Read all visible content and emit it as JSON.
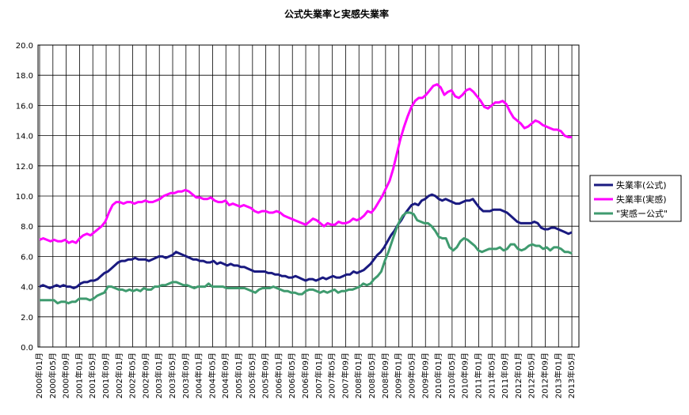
{
  "chart_data": {
    "type": "line",
    "title": "公式失業率と実感失業率",
    "xlabel": "",
    "ylabel": "",
    "ylim": [
      0,
      20
    ],
    "yticks": [
      "0.0",
      "2.0",
      "4.0",
      "6.0",
      "8.0",
      "10.0",
      "12.0",
      "14.0",
      "16.0",
      "18.0",
      "20.0"
    ],
    "x_tick_labels": [
      "2000年01月",
      "2000年05月",
      "2000年09月",
      "2001年01月",
      "2001年05月",
      "2001年09月",
      "2002年01月",
      "2002年05月",
      "2002年09月",
      "2003年01月",
      "2003年05月",
      "2003年09月",
      "2004年01月",
      "2004年05月",
      "2004年09月",
      "2005年01月",
      "2005年05月",
      "2005年09月",
      "2006年01月",
      "2006年05月",
      "2006年09月",
      "2007年01月",
      "2007年05月",
      "2007年09月",
      "2008年01月",
      "2008年05月",
      "2008年09月",
      "2009年01月",
      "2009年05月",
      "2009年09月",
      "2010年01月",
      "2010年05月",
      "2010年09月",
      "2011年01月",
      "2011年05月",
      "2011年09月",
      "2012年01月",
      "2012年05月",
      "2012年09月",
      "2013年01月",
      "2013年05月"
    ],
    "grid": true,
    "legend_position": "right",
    "series": [
      {
        "name": "失業率(公式)",
        "color": "#1a1a80",
        "values": [
          4.0,
          4.1,
          4.0,
          3.9,
          4.0,
          4.1,
          4.0,
          4.1,
          4.0,
          4.0,
          3.9,
          4.0,
          4.2,
          4.3,
          4.3,
          4.4,
          4.4,
          4.5,
          4.7,
          4.9,
          5.0,
          5.2,
          5.4,
          5.6,
          5.7,
          5.7,
          5.8,
          5.8,
          5.9,
          5.8,
          5.8,
          5.8,
          5.7,
          5.8,
          5.9,
          6.0,
          6.0,
          5.9,
          6.0,
          6.1,
          6.3,
          6.2,
          6.1,
          6.0,
          5.9,
          5.8,
          5.8,
          5.7,
          5.7,
          5.6,
          5.6,
          5.7,
          5.5,
          5.6,
          5.5,
          5.4,
          5.5,
          5.4,
          5.4,
          5.3,
          5.3,
          5.2,
          5.1,
          5.0,
          5.0,
          5.0,
          5.0,
          4.9,
          4.9,
          4.8,
          4.8,
          4.7,
          4.7,
          4.6,
          4.6,
          4.7,
          4.6,
          4.5,
          4.4,
          4.5,
          4.5,
          4.4,
          4.5,
          4.6,
          4.5,
          4.6,
          4.7,
          4.6,
          4.6,
          4.7,
          4.8,
          4.8,
          5.0,
          4.9,
          5.0,
          5.1,
          5.3,
          5.5,
          5.8,
          6.1,
          6.3,
          6.6,
          7.0,
          7.4,
          7.7,
          8.1,
          8.4,
          8.8,
          9.1,
          9.4,
          9.5,
          9.4,
          9.7,
          9.8,
          10.0,
          10.1,
          10.0,
          9.8,
          9.7,
          9.8,
          9.7,
          9.6,
          9.5,
          9.5,
          9.6,
          9.7,
          9.7,
          9.8,
          9.5,
          9.2,
          9.0,
          9.0,
          9.0,
          9.1,
          9.1,
          9.1,
          9.0,
          8.9,
          8.7,
          8.5,
          8.3,
          8.2,
          8.2,
          8.2,
          8.2,
          8.3,
          8.2,
          7.9,
          7.8,
          7.8,
          7.9,
          7.9,
          7.8,
          7.7,
          7.6,
          7.5,
          7.6
        ],
        "x_range": [
          "2000年01月",
          "2013年05月"
        ]
      },
      {
        "name": "失業率(実感)",
        "color": "#ff00ff",
        "values": [
          7.1,
          7.2,
          7.1,
          7.0,
          7.1,
          7.0,
          7.0,
          7.1,
          6.9,
          7.0,
          6.9,
          7.2,
          7.4,
          7.5,
          7.4,
          7.6,
          7.8,
          8.0,
          8.3,
          8.9,
          9.4,
          9.6,
          9.6,
          9.5,
          9.6,
          9.6,
          9.5,
          9.6,
          9.6,
          9.7,
          9.6,
          9.6,
          9.7,
          9.8,
          10.0,
          10.1,
          10.2,
          10.2,
          10.3,
          10.3,
          10.4,
          10.3,
          10.1,
          9.9,
          9.9,
          9.8,
          9.8,
          9.9,
          9.7,
          9.6,
          9.6,
          9.7,
          9.4,
          9.5,
          9.4,
          9.3,
          9.4,
          9.3,
          9.2,
          9.0,
          8.9,
          9.0,
          9.0,
          8.9,
          8.9,
          9.0,
          8.9,
          8.7,
          8.6,
          8.5,
          8.4,
          8.3,
          8.2,
          8.1,
          8.3,
          8.5,
          8.4,
          8.2,
          8.0,
          8.2,
          8.1,
          8.1,
          8.3,
          8.2,
          8.2,
          8.3,
          8.5,
          8.4,
          8.5,
          8.7,
          9.0,
          8.9,
          9.2,
          9.6,
          10.0,
          10.5,
          11.0,
          11.8,
          12.8,
          13.8,
          14.6,
          15.3,
          15.9,
          16.3,
          16.5,
          16.5,
          16.7,
          17.0,
          17.3,
          17.4,
          17.2,
          16.7,
          16.9,
          17.0,
          16.6,
          16.5,
          16.7,
          17.0,
          17.1,
          16.9,
          16.6,
          16.3,
          15.9,
          15.8,
          16.0,
          16.2,
          16.2,
          16.3,
          16.1,
          15.6,
          15.2,
          15.0,
          14.8,
          14.5,
          14.6,
          14.8,
          15.0,
          14.9,
          14.7,
          14.6,
          14.5,
          14.4,
          14.4,
          14.3,
          14.0,
          13.9,
          13.9
        ],
        "x_range": [
          "2000年01月",
          "2013年05月"
        ]
      },
      {
        "name": "\"実感ー公式\"",
        "color": "#3f9b6f",
        "values": [
          3.1,
          3.1,
          3.1,
          3.1,
          3.1,
          2.9,
          3.0,
          3.0,
          2.9,
          3.0,
          3.0,
          3.2,
          3.2,
          3.2,
          3.1,
          3.2,
          3.4,
          3.5,
          3.6,
          4.0,
          4.0,
          3.9,
          3.8,
          3.8,
          3.7,
          3.8,
          3.7,
          3.8,
          3.7,
          3.9,
          3.8,
          3.8,
          4.0,
          4.0,
          4.1,
          4.1,
          4.2,
          4.3,
          4.3,
          4.2,
          4.1,
          4.1,
          4.0,
          3.9,
          4.0,
          4.0,
          4.0,
          4.2,
          4.0,
          4.0,
          4.0,
          4.0,
          3.9,
          3.9,
          3.9,
          3.9,
          3.9,
          3.9,
          3.8,
          3.7,
          3.6,
          3.8,
          3.9,
          3.9,
          3.9,
          4.0,
          3.9,
          3.8,
          3.7,
          3.7,
          3.6,
          3.6,
          3.5,
          3.5,
          3.7,
          3.8,
          3.8,
          3.7,
          3.6,
          3.7,
          3.6,
          3.7,
          3.8,
          3.6,
          3.7,
          3.7,
          3.8,
          3.8,
          3.9,
          4.0,
          4.2,
          4.1,
          4.2,
          4.5,
          4.7,
          5.0,
          5.7,
          6.3,
          7.0,
          7.7,
          8.3,
          8.7,
          8.9,
          8.9,
          8.8,
          8.4,
          8.3,
          8.2,
          8.2,
          8.0,
          7.7,
          7.3,
          7.2,
          7.2,
          6.6,
          6.4,
          6.6,
          7.0,
          7.2,
          7.1,
          6.9,
          6.7,
          6.4,
          6.3,
          6.4,
          6.5,
          6.5,
          6.5,
          6.6,
          6.4,
          6.5,
          6.8,
          6.8,
          6.5,
          6.4,
          6.5,
          6.7,
          6.8,
          6.7,
          6.7,
          6.5,
          6.6,
          6.4,
          6.6,
          6.6,
          6.5,
          6.3,
          6.3,
          6.2
        ],
        "x_range": [
          "2000年01月",
          "2013年05月"
        ]
      }
    ]
  }
}
